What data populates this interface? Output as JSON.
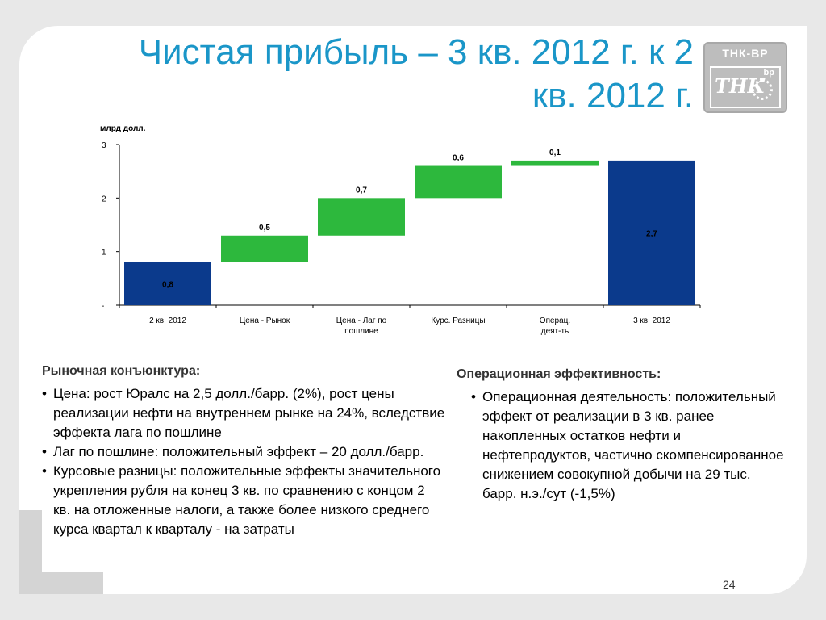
{
  "title": "Чистая прибыль – 3 кв. 2012 г. к 2 кв. 2012 г.",
  "logo": {
    "brand": "ТНК-ВР",
    "mark": "ТНК",
    "bp": "bp"
  },
  "colors": {
    "total": "#0b3a8c",
    "delta": "#2db83d",
    "title": "#1a96c8"
  },
  "chart_data": {
    "type": "bar",
    "subtype": "waterfall",
    "ylabel": "млрд долл.",
    "ylim": [
      0,
      3
    ],
    "yticks": [
      0,
      1,
      2,
      3
    ],
    "ytick_labels": [
      "-",
      "1",
      "2",
      "3"
    ],
    "categories": [
      "2 кв. 2012",
      "Цена - Рынок",
      "Цена - Лаг по пошлине",
      "Курс. Разницы",
      "Операц. деят-ть",
      "3 кв. 2012"
    ],
    "category_lines": [
      [
        "2 кв. 2012"
      ],
      [
        "Цена - Рынок"
      ],
      [
        "Цена - Лаг по",
        "пошлине"
      ],
      [
        "Курс. Разницы"
      ],
      [
        "Операц.",
        "деят-ть"
      ],
      [
        "3 кв. 2012"
      ]
    ],
    "bars": [
      {
        "kind": "total",
        "base": 0,
        "top": 0.8,
        "label": "0,8"
      },
      {
        "kind": "delta",
        "base": 0.8,
        "top": 1.3,
        "label": "0,5"
      },
      {
        "kind": "delta",
        "base": 1.3,
        "top": 2.0,
        "label": "0,7"
      },
      {
        "kind": "delta",
        "base": 2.0,
        "top": 2.6,
        "label": "0,6"
      },
      {
        "kind": "delta",
        "base": 2.6,
        "top": 2.7,
        "label": "0,1"
      },
      {
        "kind": "total",
        "base": 0,
        "top": 2.7,
        "label": "2,7"
      }
    ],
    "grid": false,
    "legend": "none"
  },
  "left": {
    "heading": "Рыночная конъюнктура:",
    "items": [
      "Цена: рост Юралс на 2,5 долл./барр. (2%), рост цены реализации нефти на внутреннем рынке на 24%, вследствие эффекта лага по пошлине",
      "Лаг по пошлине: положительный эффект – 20 долл./барр.",
      "Курсовые разницы:  положительные эффекты значительного укрепления рубля на конец 3 кв. по сравнению с концом 2 кв. на отложенные налоги, а также более низкого среднего курса квартал к кварталу - на затраты"
    ]
  },
  "right": {
    "heading": "Операционная эффективность:",
    "items": [
      "Операционная деятельность: положительный эффект от реализации в 3 кв. ранее накопленных остатков нефти и нефтепродуктов, частично скомпенсированное снижением совокупной добычи на 29 тыс. барр. н.э./сут (-1,5%)"
    ]
  },
  "page_number": "24"
}
